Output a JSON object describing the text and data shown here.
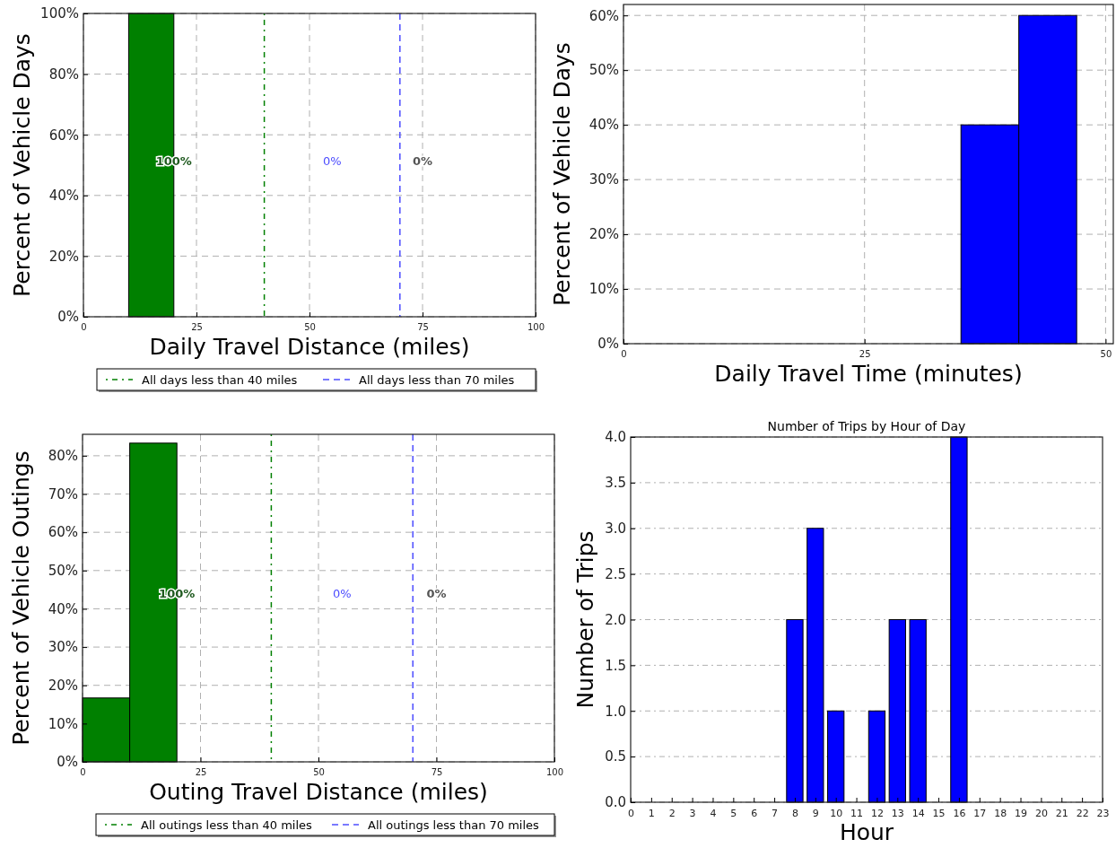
{
  "chart_data": [
    {
      "type": "histogram",
      "xlabel": "Daily Travel Distance (miles)",
      "ylabel": "Percent of Vehicle Days",
      "bins": [
        0,
        10,
        20
      ],
      "values": [
        0,
        100
      ],
      "color": "#008000",
      "xlim": [
        0,
        100
      ],
      "xticks": [
        0,
        25,
        50,
        75,
        100
      ],
      "ylim": [
        0,
        100
      ],
      "yticks": [
        {
          "value": 0,
          "label": "0%"
        },
        {
          "value": 20,
          "label": "20%"
        },
        {
          "value": 40,
          "label": "40%"
        },
        {
          "value": 60,
          "label": "60%"
        },
        {
          "value": 80,
          "label": "80%"
        },
        {
          "value": 100,
          "label": "100%"
        }
      ],
      "grid": true,
      "legend": "bottom",
      "ref_lines": [
        {
          "axis": "x",
          "value": 40,
          "label": "All days less than 40 miles",
          "color": "#008000",
          "line_style": "dotted"
        },
        {
          "axis": "x",
          "value": 70,
          "label": "All days less than 70 miles",
          "color": "#4d4dff",
          "line_style": "dashed"
        }
      ],
      "annotations": [
        "100%",
        "0%",
        "0%"
      ]
    },
    {
      "type": "histogram",
      "xlabel": "Daily Travel Time (minutes)",
      "ylabel": "Percent of Vehicle Days",
      "bins": [
        35,
        41,
        47
      ],
      "values": [
        40,
        60
      ],
      "color": "#0000ff",
      "xlim": [
        0,
        50.8
      ],
      "xticks": [
        0,
        25,
        50
      ],
      "ylim": [
        0,
        62
      ],
      "yticks": [
        {
          "value": 0,
          "label": "0%"
        },
        {
          "value": 10,
          "label": "10%"
        },
        {
          "value": 20,
          "label": "20%"
        },
        {
          "value": 30,
          "label": "30%"
        },
        {
          "value": 40,
          "label": "40%"
        },
        {
          "value": 50,
          "label": "50%"
        },
        {
          "value": 60,
          "label": "60%"
        }
      ],
      "grid": true
    },
    {
      "type": "histogram",
      "xlabel": "Outing Travel Distance (miles)",
      "ylabel": "Percent of Vehicle Outings",
      "bins": [
        0,
        10,
        20
      ],
      "values": [
        16.7,
        83.3
      ],
      "color": "#008000",
      "xlim": [
        0,
        100
      ],
      "xticks": [
        0,
        25,
        50,
        75,
        100
      ],
      "ylim": [
        0,
        85.6
      ],
      "yticks": [
        {
          "value": 0,
          "label": "0%"
        },
        {
          "value": 10,
          "label": "10%"
        },
        {
          "value": 20,
          "label": "20%"
        },
        {
          "value": 30,
          "label": "30%"
        },
        {
          "value": 40,
          "label": "40%"
        },
        {
          "value": 50,
          "label": "50%"
        },
        {
          "value": 60,
          "label": "60%"
        },
        {
          "value": 70,
          "label": "70%"
        },
        {
          "value": 80,
          "label": "80%"
        }
      ],
      "grid": true,
      "legend": "bottom",
      "ref_lines": [
        {
          "axis": "x",
          "value": 40,
          "label": "All outings less than 40 miles",
          "color": "#008000",
          "line_style": "dotted"
        },
        {
          "axis": "x",
          "value": 70,
          "label": "All outings less than 70 miles",
          "color": "#4d4dff",
          "line_style": "dashed"
        }
      ],
      "annotations": [
        "100%",
        "0%",
        "0%"
      ]
    },
    {
      "type": "bar",
      "title": "Number of Trips by Hour of Day",
      "xlabel": "Hour",
      "ylabel": "Number of Trips",
      "x": [
        0,
        1,
        2,
        3,
        4,
        5,
        6,
        7,
        8,
        9,
        10,
        11,
        12,
        13,
        14,
        15,
        16,
        17,
        18,
        19,
        20,
        21,
        22,
        23
      ],
      "values": [
        0,
        0,
        0,
        0,
        0,
        0,
        0,
        0,
        2,
        3,
        1,
        0,
        1,
        2,
        2,
        0,
        4,
        0,
        0,
        0,
        0,
        0,
        0,
        0
      ],
      "color": "#0000ff",
      "xlim": [
        0,
        23
      ],
      "xticks": [
        0,
        1,
        2,
        3,
        4,
        5,
        6,
        7,
        8,
        9,
        10,
        11,
        12,
        13,
        14,
        15,
        16,
        17,
        18,
        19,
        20,
        21,
        22,
        23
      ],
      "ylim": [
        0,
        4
      ],
      "yticks": [
        {
          "value": 0,
          "label": "0.0"
        },
        {
          "value": 0.5,
          "label": "0.5"
        },
        {
          "value": 1,
          "label": "1.0"
        },
        {
          "value": 1.5,
          "label": "1.5"
        },
        {
          "value": 2,
          "label": "2.0"
        },
        {
          "value": 2.5,
          "label": "2.5"
        },
        {
          "value": 3,
          "label": "3.0"
        },
        {
          "value": 3.5,
          "label": "3.5"
        },
        {
          "value": 4,
          "label": "4.0"
        }
      ],
      "grid": "y"
    }
  ]
}
